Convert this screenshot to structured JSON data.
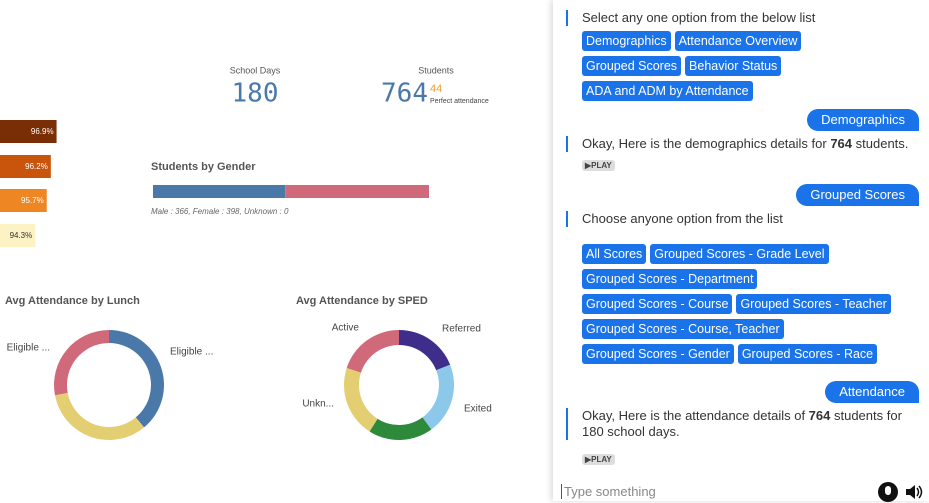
{
  "dashboard": {
    "kpis": [
      {
        "label": "School Days",
        "value": "180"
      },
      {
        "label": "Students",
        "value": "764",
        "extra": "44",
        "note": "Perfect attendance"
      }
    ],
    "attendance_bars": {
      "values": [
        96.9,
        96.2,
        95.7,
        94.3
      ],
      "value_labels": [
        "96.9%",
        "96.2%",
        "95.7%",
        "94.3%"
      ],
      "colors": [
        "#7a2e05",
        "#c9540c",
        "#ef8624",
        "#fdf2c4"
      ]
    },
    "gender": {
      "title": "Students by Gender",
      "values": [
        366,
        398,
        0
      ],
      "colors": [
        "#4a78a8",
        "#d06a7a",
        "#bbbbbb"
      ],
      "caption": "Male : 366, Female : 398, Unknown : 0"
    },
    "lunch": {
      "title": "Avg Attendance by Lunch",
      "values": [
        39,
        33,
        28
      ],
      "labels": [
        "Eligible ...",
        null,
        "Eligible ..."
      ],
      "colors": [
        "#4a78a8",
        "#e3cf72",
        "#d06a7a"
      ]
    },
    "sped": {
      "title": "Avg Attendance by SPED",
      "values": [
        19,
        21,
        19,
        21,
        20
      ],
      "labels": [
        "Referred",
        "Exited",
        null,
        "Unkn...",
        "Active"
      ],
      "colors": [
        "#3f2d8c",
        "#8cc8ea",
        "#2d8a3a",
        "#e3cf72",
        "#d06a7a"
      ]
    }
  },
  "chat": {
    "messages": [
      {
        "from": "bot",
        "text": "Select any one option from the below list",
        "options": [
          [
            "Demographics",
            "Attendance Overview"
          ],
          [
            "Grouped Scores",
            "Behavior Status"
          ],
          [
            "ADA and ADM by Attendance"
          ]
        ]
      },
      {
        "from": "user",
        "text": "Demographics"
      },
      {
        "from": "bot",
        "parts": [
          "Okay, Here is the demographics details for ",
          "764",
          " students."
        ],
        "play": "PLAY"
      },
      {
        "from": "user",
        "text": "Grouped Scores"
      },
      {
        "from": "bot",
        "text": "Choose anyone option from the list",
        "options": [
          [
            "All Scores",
            "Grouped Scores - Grade Level"
          ],
          [
            "Grouped Scores - Department"
          ],
          [
            "Grouped Scores - Course",
            "Grouped Scores - Teacher"
          ],
          [
            "Grouped Scores - Course, Teacher"
          ],
          [
            "Grouped Scores - Gender",
            "Grouped Scores - Race"
          ]
        ]
      },
      {
        "from": "user",
        "text": "Attendance"
      },
      {
        "from": "bot",
        "parts": [
          "Okay, Here is the attendance details of ",
          "764",
          " students for 180 school days."
        ],
        "play": "PLAY"
      }
    ],
    "input_placeholder": "Type something"
  }
}
